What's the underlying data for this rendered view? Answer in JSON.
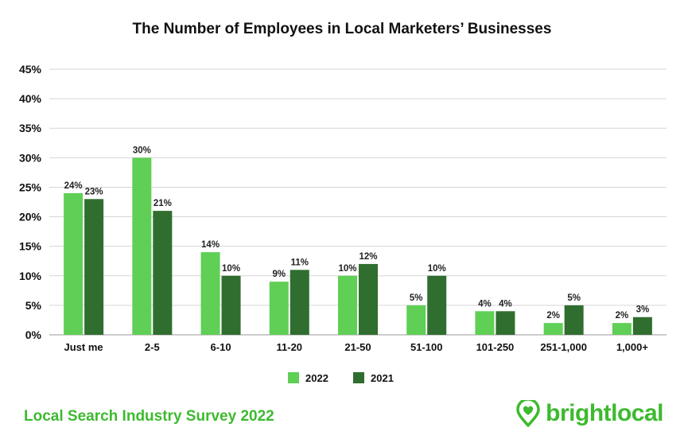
{
  "chart_data": {
    "type": "bar",
    "title": "The Number of Employees in Local Marketers’ Businesses",
    "categories": [
      "Just me",
      "2-5",
      "6-10",
      "11-20",
      "21-50",
      "51-100",
      "101-250",
      "251-1,000",
      "1,000+"
    ],
    "series": [
      {
        "name": "2022",
        "values": [
          24,
          30,
          14,
          9,
          10,
          5,
          4,
          2,
          2
        ],
        "labels": [
          "24%",
          "30%",
          "14%",
          "9%",
          "10%",
          "5%",
          "4%",
          "2%",
          "2%"
        ],
        "color": "#5fcf55"
      },
      {
        "name": "2021",
        "values": [
          23,
          21,
          10,
          11,
          12,
          10,
          4,
          5,
          3
        ],
        "labels": [
          "23%",
          "21%",
          "10%",
          "11%",
          "12%",
          "10%",
          "4%",
          "5%",
          "3%"
        ],
        "color": "#2f6e2f"
      }
    ],
    "yticks": [
      "0%",
      "5%",
      "10%",
      "15%",
      "20%",
      "25%",
      "30%",
      "35%",
      "40%",
      "45%"
    ],
    "ylim": [
      0,
      45
    ],
    "xlabel": "",
    "ylabel": "",
    "grid": true,
    "legend_position": "bottom-center"
  },
  "footer": {
    "survey_title": "Local Search Industry Survey 2022",
    "brand_name": "brightlocal",
    "brand_color": "#3dba2f",
    "brand_icon": "location-pin-heart-icon"
  }
}
